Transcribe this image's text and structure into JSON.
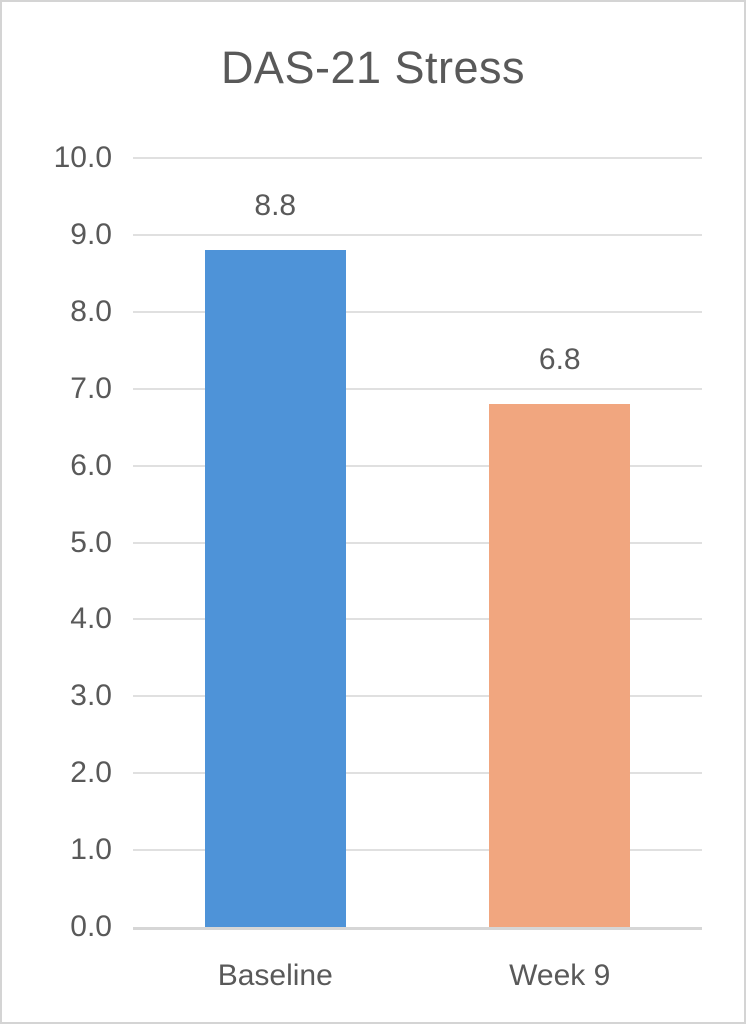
{
  "chart_data": {
    "type": "bar",
    "title": "DAS-21 Stress",
    "categories": [
      "Baseline",
      "Week 9"
    ],
    "values": [
      8.8,
      6.8
    ],
    "value_labels": [
      "8.8",
      "6.8"
    ],
    "y_tick_labels": [
      "0.0",
      "1.0",
      "2.0",
      "3.0",
      "4.0",
      "5.0",
      "6.0",
      "7.0",
      "8.0",
      "9.0",
      "10.0"
    ],
    "ylim": [
      0,
      10
    ],
    "ytick_step": 1,
    "xlabel": "",
    "ylabel": "",
    "grid": true,
    "legend": "none",
    "bar_colors": [
      "#4E93D8",
      "#F1A67F"
    ],
    "text_color": "#595959",
    "gridline_color": "#E0E0E0",
    "axis_line_color": "#D6D6D6",
    "background_color": "#FFFFFF",
    "border_color": "#D4D4D4"
  }
}
